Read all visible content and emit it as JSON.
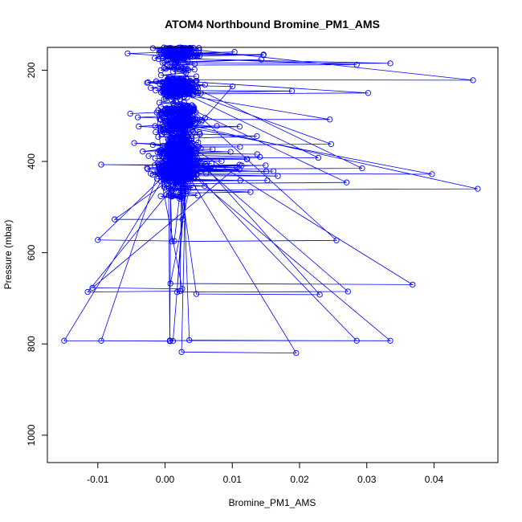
{
  "chart_data": {
    "type": "scatter",
    "style": "points-connected-by-lines",
    "title": "ATOM4 Northbound Bromine_PM1_AMS",
    "xlabel": "Bromine_PM1_AMS",
    "ylabel": "Pressure (mbar)",
    "xlim": [
      -0.0175,
      0.0495
    ],
    "ylim": [
      1060,
      150
    ],
    "y_reversed": true,
    "grid": false,
    "legend": "none",
    "series_color": "#0000ff",
    "x_ticks": [
      {
        "value": -0.01,
        "label": "-0.01"
      },
      {
        "value": 0.0,
        "label": "0.00"
      },
      {
        "value": 0.01,
        "label": "0.01"
      },
      {
        "value": 0.02,
        "label": "0.02"
      },
      {
        "value": 0.03,
        "label": "0.03"
      },
      {
        "value": 0.04,
        "label": "0.04"
      }
    ],
    "y_ticks": [
      {
        "value": 200,
        "label": "200"
      },
      {
        "value": 400,
        "label": "400"
      },
      {
        "value": 600,
        "label": "600"
      },
      {
        "value": 800,
        "label": "800"
      },
      {
        "value": 1000,
        "label": "1000"
      }
    ],
    "dense_cloud": {
      "description_note": "",
      "center_x": 0.002,
      "p_min": 150,
      "p_max": 822,
      "n_points": 1700
    },
    "notable_points": [
      {
        "x": 0.0335,
        "y": 185
      },
      {
        "x": 0.0285,
        "y": 188
      },
      {
        "x": 0.0458,
        "y": 222
      },
      {
        "x": 0.0302,
        "y": 250
      },
      {
        "x": 0.0245,
        "y": 308
      },
      {
        "x": 0.0247,
        "y": 362
      },
      {
        "x": 0.0228,
        "y": 392
      },
      {
        "x": 0.0293,
        "y": 415
      },
      {
        "x": 0.0397,
        "y": 428
      },
      {
        "x": 0.027,
        "y": 446
      },
      {
        "x": 0.0465,
        "y": 460
      },
      {
        "x": 0.0255,
        "y": 573
      },
      {
        "x": 0.0368,
        "y": 670
      },
      {
        "x": 0.0272,
        "y": 685
      },
      {
        "x": 0.023,
        "y": 692
      },
      {
        "x": 0.0335,
        "y": 793
      },
      {
        "x": 0.0285,
        "y": 793
      },
      {
        "x": 0.0195,
        "y": 820
      },
      {
        "x": -0.015,
        "y": 793
      },
      {
        "x": -0.0095,
        "y": 407
      },
      {
        "x": -0.01,
        "y": 572
      },
      {
        "x": -0.0115,
        "y": 686
      },
      {
        "x": -0.0108,
        "y": 677
      },
      {
        "x": -0.0095,
        "y": 793
      },
      {
        "x": -0.0075,
        "y": 527
      }
    ]
  }
}
